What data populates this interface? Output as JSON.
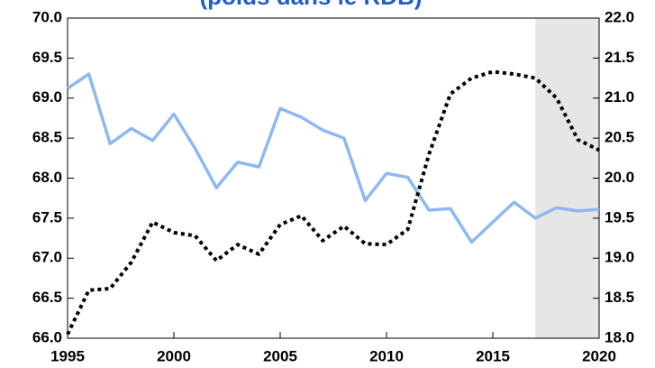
{
  "chart_data": {
    "type": "line",
    "title": "(poids dans le RDB)",
    "x": [
      1995,
      1996,
      1997,
      1998,
      1999,
      2000,
      2001,
      2002,
      2003,
      2004,
      2005,
      2006,
      2007,
      2008,
      2009,
      2010,
      2011,
      2012,
      2013,
      2014,
      2015,
      2016,
      2017,
      2018,
      2019,
      2020
    ],
    "series": [
      {
        "color": "#8fb8f0",
        "dash": "solid",
        "axis": "y",
        "values": [
          69.12,
          69.3,
          68.43,
          68.62,
          68.47,
          68.8,
          68.37,
          67.88,
          68.2,
          68.14,
          68.87,
          68.76,
          68.6,
          68.5,
          67.72,
          68.06,
          68.01,
          67.6,
          67.62,
          67.2,
          67.45,
          67.7,
          67.5,
          67.63,
          67.59,
          67.61
        ]
      },
      {
        "color": "#000000",
        "dash": "dotted",
        "axis": "y2",
        "values": [
          18.05,
          18.6,
          18.62,
          18.95,
          19.45,
          19.32,
          19.28,
          18.97,
          19.17,
          19.05,
          19.42,
          19.53,
          19.22,
          19.4,
          19.18,
          19.17,
          19.36,
          20.3,
          21.05,
          21.25,
          21.33,
          21.3,
          21.25,
          21.0,
          20.48,
          20.35
        ]
      }
    ],
    "xlim": [
      1995,
      2020
    ],
    "xticks": [
      1995,
      2000,
      2005,
      2010,
      2015,
      2020
    ],
    "ylim": [
      66,
      70
    ],
    "yticks": [
      {
        "value": 66,
        "label": "66.0"
      },
      {
        "value": 66.5,
        "label": "66.5"
      },
      {
        "value": 67,
        "label": "67.0"
      },
      {
        "value": 67.5,
        "label": "67.5"
      },
      {
        "value": 68,
        "label": "68.0"
      },
      {
        "value": 68.5,
        "label": "68.5"
      },
      {
        "value": 69,
        "label": "69.0"
      },
      {
        "value": 69.5,
        "label": "69.5"
      },
      {
        "value": 70,
        "label": "70.0"
      }
    ],
    "y2lim": [
      18,
      22
    ],
    "y2ticks": [
      {
        "value": 18,
        "label": "18.0"
      },
      {
        "value": 18.5,
        "label": "18.5"
      },
      {
        "value": 19,
        "label": "19.0"
      },
      {
        "value": 19.5,
        "label": "19.5"
      },
      {
        "value": 20,
        "label": "20.0"
      },
      {
        "value": 20.5,
        "label": "20.5"
      },
      {
        "value": 21,
        "label": "21.0"
      },
      {
        "value": 21.5,
        "label": "21.5"
      },
      {
        "value": 22,
        "label": "22.0"
      }
    ],
    "shaded_range": [
      2017,
      2020
    ],
    "shade_color": "#e6e6e6"
  }
}
